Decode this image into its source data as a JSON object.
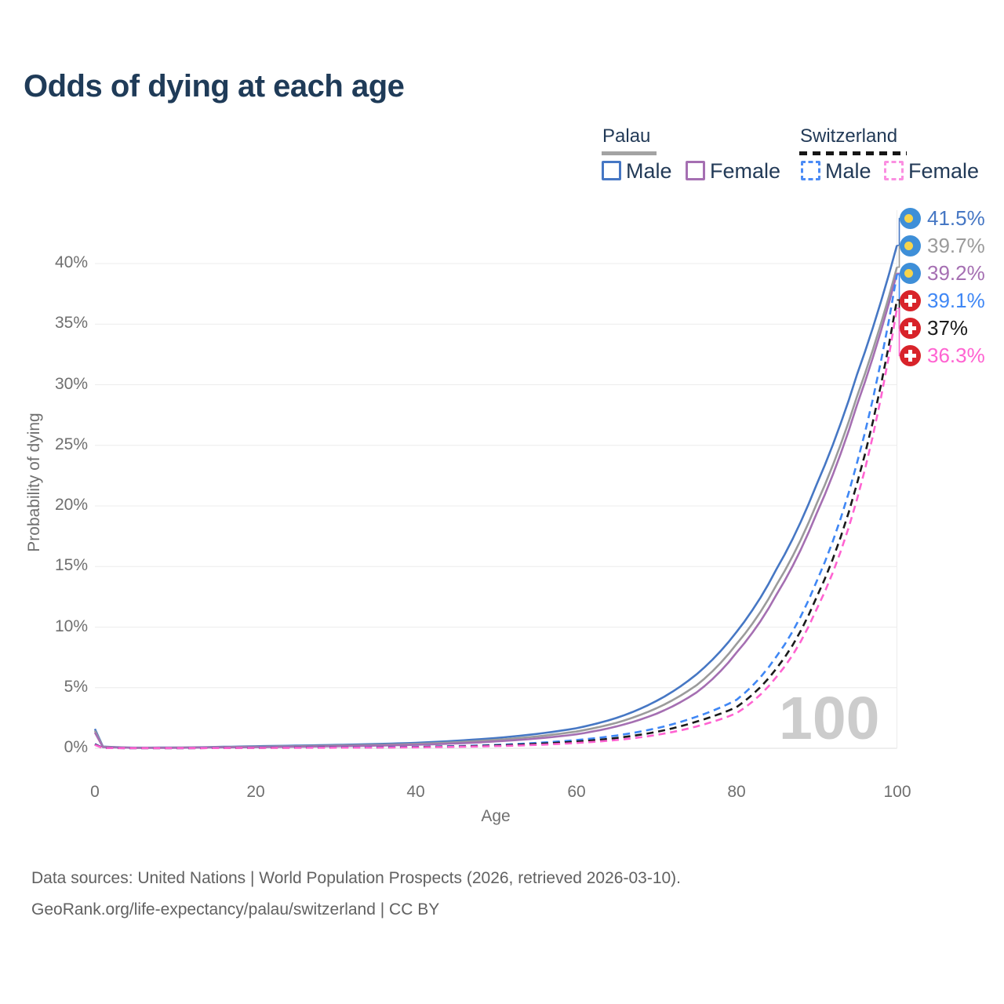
{
  "title": "Odds of dying at each age",
  "legend": {
    "groups": [
      {
        "name": "Palau",
        "line_style": "solid",
        "underline_color": "#a3a3a3",
        "items": [
          {
            "label": "Male",
            "color": "#4677c4"
          },
          {
            "label": "Female",
            "color": "#a56fb2"
          }
        ]
      },
      {
        "name": "Switzerland",
        "line_style": "dashed",
        "underline_color": "#161616",
        "items": [
          {
            "label": "Male",
            "color": "#4b8bf5"
          },
          {
            "label": "Female",
            "color": "#fb8fe1"
          }
        ]
      }
    ]
  },
  "chart_data": {
    "type": "line",
    "title": "Odds of dying at each age",
    "xlabel": "Age",
    "ylabel": "Probability of dying",
    "xlim": [
      0,
      100
    ],
    "ylim_percent": [
      0,
      43.5
    ],
    "grid": true,
    "watermark": "100",
    "x_ticks": [
      {
        "value": 0,
        "label": "0"
      },
      {
        "value": 20,
        "label": "20"
      },
      {
        "value": 40,
        "label": "40"
      },
      {
        "value": 60,
        "label": "60"
      },
      {
        "value": 80,
        "label": "80"
      },
      {
        "value": 100,
        "label": "100"
      }
    ],
    "y_ticks": [
      {
        "value": 0,
        "label": "0%"
      },
      {
        "value": 5,
        "label": "5%"
      },
      {
        "value": 10,
        "label": "10%"
      },
      {
        "value": 15,
        "label": "15%"
      },
      {
        "value": 20,
        "label": "20%"
      },
      {
        "value": 25,
        "label": "25%"
      },
      {
        "value": 30,
        "label": "30%"
      },
      {
        "value": 35,
        "label": "35%"
      },
      {
        "value": 40,
        "label": "40%"
      }
    ],
    "ages": [
      0,
      1,
      5,
      10,
      15,
      20,
      25,
      30,
      35,
      40,
      45,
      50,
      55,
      60,
      65,
      70,
      75,
      80,
      85,
      90,
      95,
      100
    ],
    "series": [
      {
        "name": "Palau Male",
        "country": "Palau",
        "sex": "Male",
        "color": "#4677c4",
        "dashed": false,
        "flag": "palau",
        "end_label": "41.5%",
        "values_percent": [
          1.6,
          0.14,
          0.05,
          0.06,
          0.11,
          0.17,
          0.22,
          0.28,
          0.35,
          0.45,
          0.62,
          0.85,
          1.18,
          1.65,
          2.5,
          3.9,
          6.1,
          9.6,
          14.8,
          21.8,
          30.8,
          41.5
        ]
      },
      {
        "name": "Palau Both sexes",
        "country": "Palau",
        "sex": "Both",
        "color": "#9b9b9b",
        "dashed": false,
        "flag": "palau",
        "end_label": "39.7%",
        "values_percent": [
          1.45,
          0.12,
          0.04,
          0.05,
          0.09,
          0.13,
          0.17,
          0.22,
          0.28,
          0.36,
          0.5,
          0.7,
          0.97,
          1.38,
          2.1,
          3.3,
          5.2,
          8.6,
          13.5,
          20.2,
          29.0,
          39.7
        ]
      },
      {
        "name": "Palau Female",
        "country": "Palau",
        "sex": "Female",
        "color": "#a56fb2",
        "dashed": false,
        "flag": "palau",
        "end_label": "39.2%",
        "values_percent": [
          1.3,
          0.1,
          0.04,
          0.04,
          0.07,
          0.1,
          0.13,
          0.17,
          0.22,
          0.29,
          0.4,
          0.57,
          0.8,
          1.15,
          1.8,
          2.85,
          4.6,
          7.9,
          12.7,
          19.4,
          28.3,
          39.2
        ]
      },
      {
        "name": "Switzerland Male",
        "country": "Switzerland",
        "sex": "Male",
        "color": "#3f87f5",
        "dashed": true,
        "flag": "swiss",
        "end_label": "39.1%",
        "values_percent": [
          0.35,
          0.03,
          0.01,
          0.01,
          0.03,
          0.06,
          0.07,
          0.08,
          0.09,
          0.12,
          0.18,
          0.28,
          0.44,
          0.68,
          1.05,
          1.65,
          2.6,
          4.0,
          7.6,
          13.8,
          23.5,
          39.1
        ]
      },
      {
        "name": "Switzerland Both sexes",
        "country": "Switzerland",
        "sex": "Both",
        "color": "#1a1a1a",
        "dashed": true,
        "flag": "swiss",
        "end_label": "37%",
        "values_percent": [
          0.32,
          0.03,
          0.01,
          0.01,
          0.02,
          0.04,
          0.05,
          0.06,
          0.07,
          0.1,
          0.15,
          0.23,
          0.36,
          0.55,
          0.85,
          1.35,
          2.2,
          3.4,
          6.6,
          12.5,
          21.8,
          37.0
        ]
      },
      {
        "name": "Switzerland Female",
        "country": "Switzerland",
        "sex": "Female",
        "color": "#ff63d1",
        "dashed": true,
        "flag": "swiss",
        "end_label": "36.3%",
        "values_percent": [
          0.28,
          0.02,
          0.01,
          0.01,
          0.02,
          0.03,
          0.04,
          0.05,
          0.06,
          0.08,
          0.12,
          0.18,
          0.28,
          0.44,
          0.68,
          1.1,
          1.8,
          2.9,
          5.9,
          11.5,
          20.5,
          36.3
        ]
      }
    ]
  },
  "footer": {
    "line1": "Data sources: United Nations | World Population Prospects (2026, retrieved 2026-03-10).",
    "line2": "GeoRank.org/life-expectancy/palau/switzerland | CC BY"
  }
}
